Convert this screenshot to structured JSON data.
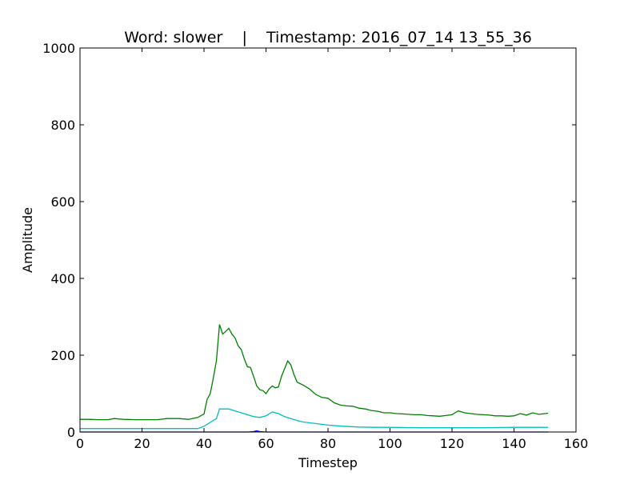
{
  "chart_data": {
    "type": "line",
    "title": "Word: slower    |    Timestamp: 2016_07_14 13_55_36",
    "xlabel": "Timestep",
    "ylabel": "Amplitude",
    "xlim": [
      0,
      160
    ],
    "ylim": [
      0,
      1000
    ],
    "xticks": [
      "0",
      "20",
      "40",
      "60",
      "80",
      "100",
      "120",
      "140",
      "160"
    ],
    "yticks": [
      "0",
      "200",
      "400",
      "600",
      "800",
      "1000"
    ],
    "grid": false,
    "legend": false,
    "series": [
      {
        "color": "#008000",
        "points": [
          [
            0,
            33
          ],
          [
            3,
            33
          ],
          [
            6,
            32
          ],
          [
            9,
            32
          ],
          [
            11,
            35
          ],
          [
            14,
            33
          ],
          [
            18,
            32
          ],
          [
            22,
            32
          ],
          [
            25,
            32
          ],
          [
            28,
            35
          ],
          [
            32,
            35
          ],
          [
            35,
            33
          ],
          [
            38,
            38
          ],
          [
            40,
            47
          ],
          [
            41,
            85
          ],
          [
            42,
            100
          ],
          [
            43,
            140
          ],
          [
            44,
            185
          ],
          [
            45,
            280
          ],
          [
            46,
            255
          ],
          [
            47,
            262
          ],
          [
            48,
            270
          ],
          [
            49,
            255
          ],
          [
            50,
            245
          ],
          [
            51,
            225
          ],
          [
            52,
            215
          ],
          [
            53,
            190
          ],
          [
            54,
            170
          ],
          [
            55,
            168
          ],
          [
            56,
            145
          ],
          [
            57,
            120
          ],
          [
            58,
            110
          ],
          [
            59,
            108
          ],
          [
            60,
            100
          ],
          [
            61,
            112
          ],
          [
            62,
            120
          ],
          [
            63,
            115
          ],
          [
            64,
            117
          ],
          [
            65,
            145
          ],
          [
            66,
            165
          ],
          [
            67,
            185
          ],
          [
            68,
            175
          ],
          [
            69,
            150
          ],
          [
            70,
            130
          ],
          [
            72,
            122
          ],
          [
            74,
            112
          ],
          [
            76,
            98
          ],
          [
            78,
            90
          ],
          [
            80,
            88
          ],
          [
            82,
            76
          ],
          [
            84,
            70
          ],
          [
            86,
            68
          ],
          [
            88,
            67
          ],
          [
            90,
            62
          ],
          [
            92,
            60
          ],
          [
            94,
            56
          ],
          [
            96,
            54
          ],
          [
            98,
            50
          ],
          [
            100,
            50
          ],
          [
            102,
            48
          ],
          [
            104,
            47
          ],
          [
            106,
            46
          ],
          [
            108,
            45
          ],
          [
            110,
            45
          ],
          [
            112,
            43
          ],
          [
            114,
            42
          ],
          [
            116,
            41
          ],
          [
            118,
            43
          ],
          [
            120,
            45
          ],
          [
            122,
            55
          ],
          [
            124,
            50
          ],
          [
            126,
            48
          ],
          [
            128,
            46
          ],
          [
            130,
            45
          ],
          [
            132,
            44
          ],
          [
            134,
            42
          ],
          [
            136,
            42
          ],
          [
            138,
            41
          ],
          [
            140,
            42
          ],
          [
            142,
            48
          ],
          [
            144,
            44
          ],
          [
            146,
            50
          ],
          [
            148,
            46
          ],
          [
            150,
            48
          ],
          [
            151,
            49
          ]
        ]
      },
      {
        "color": "#00BFBF",
        "points": [
          [
            0,
            9
          ],
          [
            10,
            9
          ],
          [
            20,
            9
          ],
          [
            30,
            9
          ],
          [
            38,
            9
          ],
          [
            40,
            15
          ],
          [
            42,
            25
          ],
          [
            44,
            35
          ],
          [
            45,
            60
          ],
          [
            46,
            60
          ],
          [
            48,
            60
          ],
          [
            50,
            55
          ],
          [
            52,
            50
          ],
          [
            54,
            45
          ],
          [
            56,
            40
          ],
          [
            58,
            38
          ],
          [
            60,
            42
          ],
          [
            62,
            52
          ],
          [
            64,
            48
          ],
          [
            66,
            40
          ],
          [
            68,
            35
          ],
          [
            70,
            30
          ],
          [
            72,
            26
          ],
          [
            74,
            24
          ],
          [
            76,
            22
          ],
          [
            78,
            20
          ],
          [
            80,
            18
          ],
          [
            85,
            15
          ],
          [
            90,
            13
          ],
          [
            95,
            12
          ],
          [
            100,
            12
          ],
          [
            110,
            11
          ],
          [
            120,
            11
          ],
          [
            130,
            11
          ],
          [
            140,
            12
          ],
          [
            151,
            12
          ]
        ]
      },
      {
        "color": "#0000FF",
        "points": [
          [
            0,
            0
          ],
          [
            54,
            0
          ],
          [
            56,
            1
          ],
          [
            57,
            3
          ],
          [
            58,
            1
          ],
          [
            60,
            0
          ],
          [
            151,
            0
          ]
        ]
      }
    ]
  }
}
